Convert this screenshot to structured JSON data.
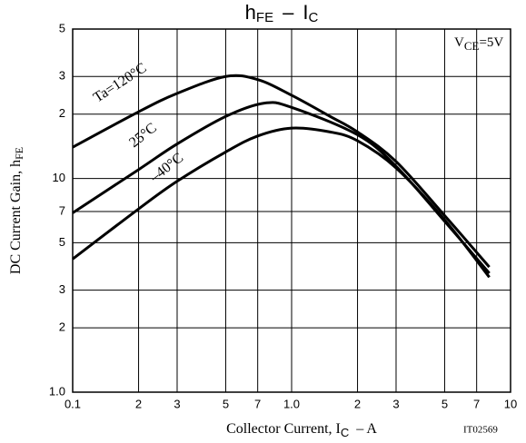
{
  "chart_data": {
    "type": "line",
    "title": {
      "h": "h",
      "fe": "FE",
      "sep": "–",
      "i": "I",
      "c": "C"
    },
    "x_label": {
      "text": "Collector Current, I",
      "sub": "C",
      "unit": "–  A"
    },
    "y_label": {
      "text": "DC Current Gain, h",
      "sub": "FE"
    },
    "condition": {
      "v": "V",
      "sub": "CE",
      "rest": "=5V"
    },
    "code": "IT02569",
    "log_x": true,
    "log_y": true,
    "grid": true,
    "xlim": [
      0.1,
      10
    ],
    "ylim": [
      1,
      50
    ],
    "xticks": [
      0.1,
      2,
      3,
      5,
      7,
      {
        "value": 1,
        "label": "1.0"
      },
      {
        "value": 0.2,
        "label": "2"
      },
      {
        "value": 0.3,
        "label": "3"
      },
      {
        "value": 0.5,
        "label": "5"
      },
      {
        "value": 0.7,
        "label": "7"
      },
      10
    ],
    "yticks": [
      {
        "value": 1,
        "label": "1.0"
      },
      2,
      3,
      5,
      7,
      10,
      {
        "value": 20,
        "label": "2"
      },
      {
        "value": 30,
        "label": "3"
      },
      {
        "value": 50,
        "label": "5"
      }
    ],
    "series": [
      {
        "name": "Ta=120°C",
        "color": "#000000",
        "x": [
          0.1,
          0.2,
          0.3,
          0.5,
          0.7,
          1,
          1.5,
          2,
          3,
          5,
          8
        ],
        "values": [
          14,
          20.5,
          25,
          30,
          29,
          24.5,
          19.5,
          16.5,
          12,
          6.7,
          3.85
        ]
      },
      {
        "name": "25°C",
        "color": "#000000",
        "x": [
          0.1,
          0.2,
          0.3,
          0.5,
          0.75,
          1,
          2,
          3,
          5,
          8
        ],
        "values": [
          6.9,
          11,
          14.5,
          19.5,
          22.5,
          21.5,
          16,
          11.4,
          6.3,
          3.6
        ]
      },
      {
        "name": "–40°C",
        "color": "#000000",
        "x": [
          0.1,
          0.2,
          0.3,
          0.5,
          0.7,
          1,
          1.5,
          2,
          3,
          5,
          8
        ],
        "values": [
          4.2,
          7.2,
          9.7,
          13.3,
          15.8,
          17.2,
          16.5,
          15,
          11.2,
          6.4,
          3.45
        ]
      }
    ]
  }
}
